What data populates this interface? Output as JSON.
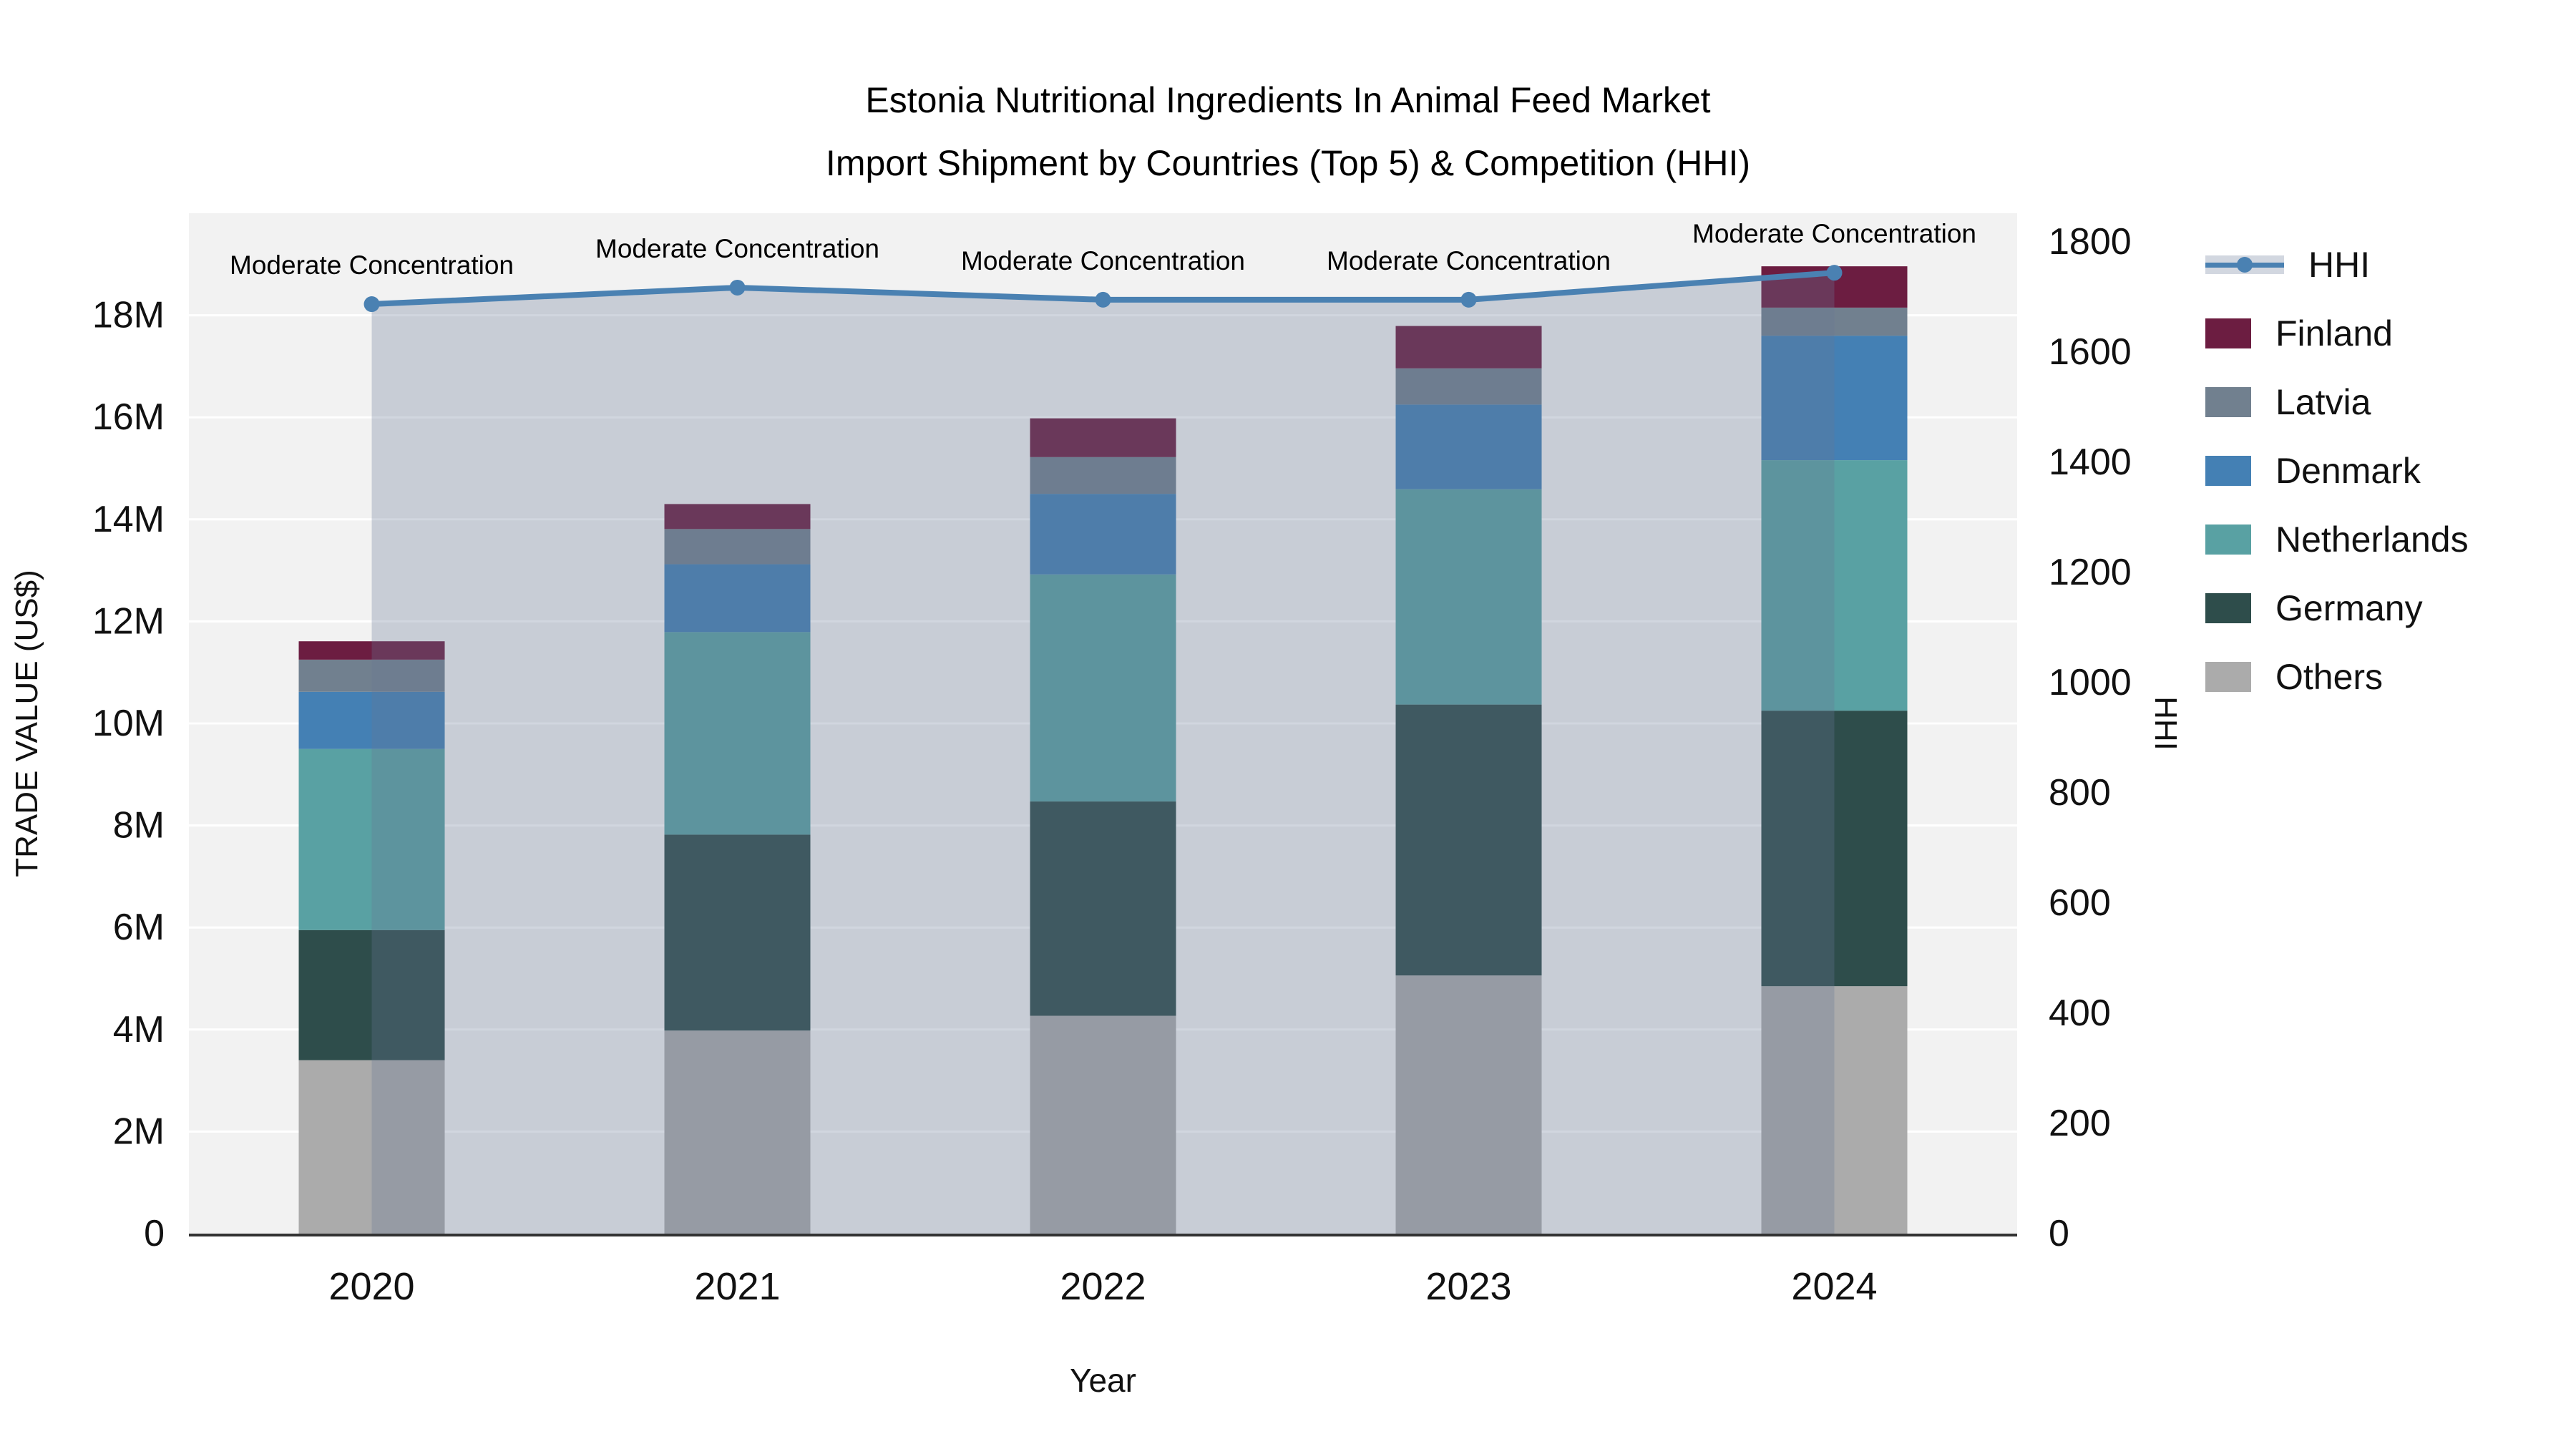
{
  "title": {
    "line1": "Estonia Nutritional Ingredients In Animal Feed Market",
    "line2": "Import Shipment by Countries (Top 5) & Competition (HHI)"
  },
  "legend": {
    "position": "right",
    "items": [
      {
        "label": "HHI",
        "type": "line",
        "color": "#4A81B2",
        "band_color": "#D2D7E0"
      },
      {
        "label": "Finland",
        "type": "square",
        "color": "#6C1D41"
      },
      {
        "label": "Latvia",
        "type": "square",
        "color": "#71808F"
      },
      {
        "label": "Denmark",
        "type": "square",
        "color": "#4480B4"
      },
      {
        "label": "Netherlands",
        "type": "square",
        "color": "#59A1A3"
      },
      {
        "label": "Germany",
        "type": "square",
        "color": "#2E4D4B"
      },
      {
        "label": "Others",
        "type": "square",
        "color": "#ABABAB"
      }
    ]
  },
  "chart_data": {
    "type": "bar",
    "subtype": "stacked-bars-with-line-overlay",
    "categories": [
      "2020",
      "2021",
      "2022",
      "2023",
      "2024"
    ],
    "xlabel": "Year",
    "y1label": "TRADE VALUE (US$)",
    "y2label": "HHI",
    "y1lim_musd": [
      0,
      20
    ],
    "y2lim": [
      0,
      1852
    ],
    "y1ticks": [
      {
        "value_musd": 0,
        "label": "0"
      },
      {
        "value_musd": 2,
        "label": "2M"
      },
      {
        "value_musd": 4,
        "label": "4M"
      },
      {
        "value_musd": 6,
        "label": "6M"
      },
      {
        "value_musd": 8,
        "label": "8M"
      },
      {
        "value_musd": 10,
        "label": "10M"
      },
      {
        "value_musd": 12,
        "label": "12M"
      },
      {
        "value_musd": 14,
        "label": "14M"
      },
      {
        "value_musd": 16,
        "label": "16M"
      },
      {
        "value_musd": 18,
        "label": "18M"
      }
    ],
    "y2ticks": [
      {
        "value": 0,
        "label": "0"
      },
      {
        "value": 200,
        "label": "200"
      },
      {
        "value": 400,
        "label": "400"
      },
      {
        "value": 600,
        "label": "600"
      },
      {
        "value": 800,
        "label": "800"
      },
      {
        "value": 1000,
        "label": "1000"
      },
      {
        "value": 1200,
        "label": "1200"
      },
      {
        "value": 1400,
        "label": "1400"
      },
      {
        "value": 1600,
        "label": "1600"
      },
      {
        "value": 1800,
        "label": "1800"
      }
    ],
    "grid": "on",
    "plot_bg": "#F2F2F2",
    "gridline_color": "#FFFFFF",
    "axisline_color": "#333333",
    "series": [
      {
        "name": "Others",
        "stack_order": 1,
        "color": "#ABABAB",
        "values_musd": [
          3.4,
          3.98,
          4.27,
          5.06,
          4.85
        ]
      },
      {
        "name": "Germany",
        "stack_order": 2,
        "color": "#2E4D4B",
        "values_musd": [
          2.55,
          3.84,
          4.2,
          5.31,
          5.4
        ]
      },
      {
        "name": "Netherlands",
        "stack_order": 3,
        "color": "#59A1A3",
        "values_musd": [
          3.55,
          3.97,
          4.45,
          4.22,
          4.91
        ]
      },
      {
        "name": "Denmark",
        "stack_order": 4,
        "color": "#4480B4",
        "values_musd": [
          1.12,
          1.33,
          1.58,
          1.66,
          2.44
        ]
      },
      {
        "name": "Latvia",
        "stack_order": 5,
        "color": "#71808F",
        "values_musd": [
          0.63,
          0.69,
          0.72,
          0.71,
          0.55
        ]
      },
      {
        "name": "Finland",
        "stack_order": 6,
        "color": "#6C1D41",
        "values_musd": [
          0.36,
          0.49,
          0.76,
          0.83,
          0.81
        ]
      }
    ],
    "bar_totals_musd": [
      11.61,
      14.3,
      15.98,
      17.79,
      18.96
    ],
    "line_series": {
      "name": "HHI",
      "axis": "y2",
      "color": "#4A81B2",
      "area_fill": "rgba(102,119,149,0.30)",
      "values": [
        1687,
        1717,
        1695,
        1695,
        1744
      ]
    },
    "annotations": [
      {
        "category": "2020",
        "text": "Moderate Concentration"
      },
      {
        "category": "2021",
        "text": "Moderate Concentration"
      },
      {
        "category": "2022",
        "text": "Moderate Concentration"
      },
      {
        "category": "2023",
        "text": "Moderate Concentration"
      },
      {
        "category": "2024",
        "text": "Moderate Concentration"
      }
    ]
  }
}
